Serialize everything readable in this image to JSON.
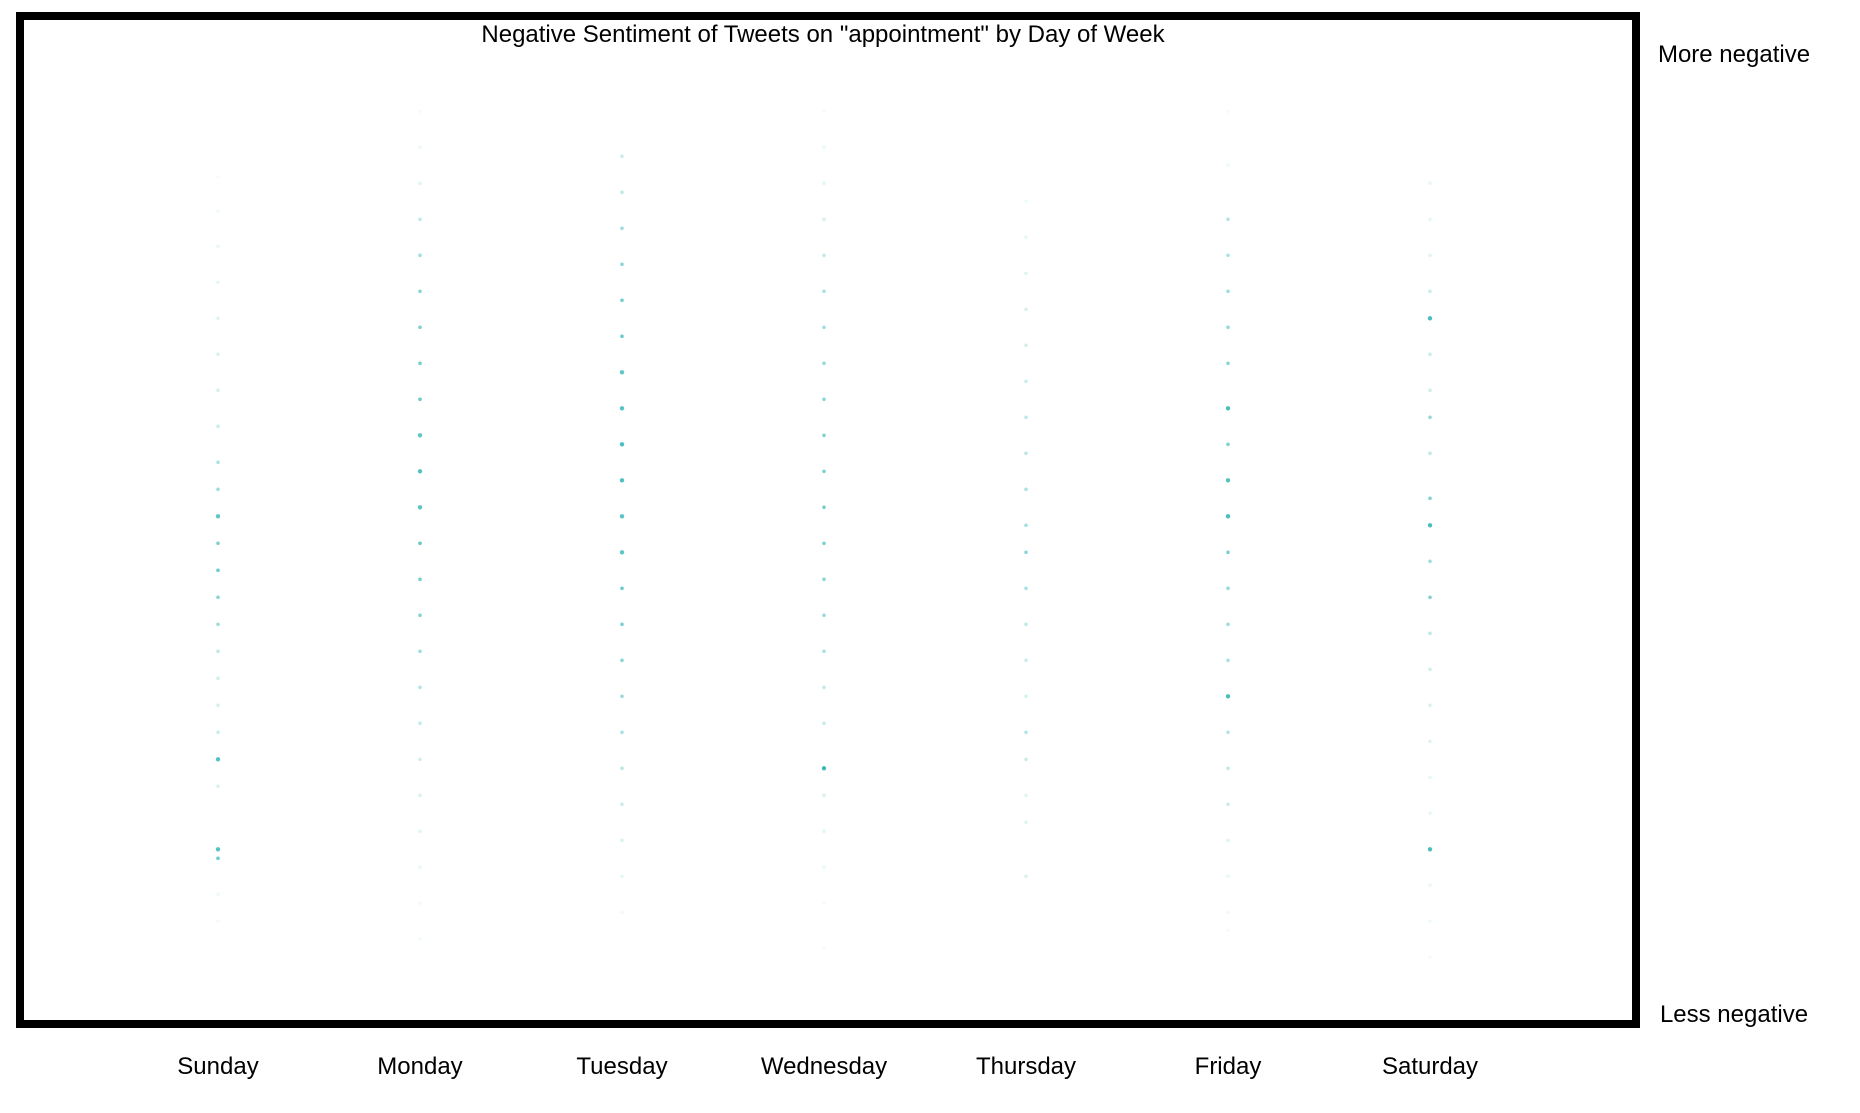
{
  "chart_data": {
    "type": "scatter",
    "title": "Negative Sentiment of Tweets on \"appointment\" by Day of Week",
    "categories": [
      "Sunday",
      "Monday",
      "Tuesday",
      "Wednesday",
      "Thursday",
      "Friday",
      "Saturday"
    ],
    "y_axis_label_top": "More negative",
    "y_axis_label_bottom": "Less negative",
    "ylim": [
      0,
      1
    ],
    "grid": false,
    "legend": "none",
    "point_color": "#2ab3b3",
    "frame_color": "#000000",
    "series": [
      {
        "category": "Sunday",
        "points": [
          {
            "y": 0.87,
            "opacity": 0.05
          },
          {
            "y": 0.832,
            "opacity": 0.07
          },
          {
            "y": 0.793,
            "opacity": 0.09
          },
          {
            "y": 0.753,
            "opacity": 0.12
          },
          {
            "y": 0.713,
            "opacity": 0.15
          },
          {
            "y": 0.673,
            "opacity": 0.18
          },
          {
            "y": 0.633,
            "opacity": 0.2
          },
          {
            "y": 0.593,
            "opacity": 0.25
          },
          {
            "y": 0.553,
            "opacity": 0.4
          },
          {
            "y": 0.523,
            "opacity": 0.45
          },
          {
            "y": 0.493,
            "opacity": 0.75
          },
          {
            "y": 0.463,
            "opacity": 0.6
          },
          {
            "y": 0.433,
            "opacity": 0.7
          },
          {
            "y": 0.403,
            "opacity": 0.55
          },
          {
            "y": 0.373,
            "opacity": 0.45
          },
          {
            "y": 0.343,
            "opacity": 0.3
          },
          {
            "y": 0.313,
            "opacity": 0.22
          },
          {
            "y": 0.283,
            "opacity": 0.2
          },
          {
            "y": 0.253,
            "opacity": 0.25
          },
          {
            "y": 0.223,
            "opacity": 0.8
          },
          {
            "y": 0.193,
            "opacity": 0.18
          },
          {
            "y": 0.123,
            "opacity": 0.8
          },
          {
            "y": 0.113,
            "opacity": 0.7
          },
          {
            "y": 0.073,
            "opacity": 0.08
          },
          {
            "y": 0.043,
            "opacity": 0.05
          }
        ]
      },
      {
        "category": "Monday",
        "points": [
          {
            "y": 0.943,
            "opacity": 0.05
          },
          {
            "y": 0.903,
            "opacity": 0.08
          },
          {
            "y": 0.863,
            "opacity": 0.15
          },
          {
            "y": 0.823,
            "opacity": 0.3
          },
          {
            "y": 0.783,
            "opacity": 0.45
          },
          {
            "y": 0.743,
            "opacity": 0.55
          },
          {
            "y": 0.703,
            "opacity": 0.6
          },
          {
            "y": 0.663,
            "opacity": 0.65
          },
          {
            "y": 0.623,
            "opacity": 0.7
          },
          {
            "y": 0.583,
            "opacity": 0.75
          },
          {
            "y": 0.543,
            "opacity": 0.8
          },
          {
            "y": 0.503,
            "opacity": 0.78
          },
          {
            "y": 0.463,
            "opacity": 0.72
          },
          {
            "y": 0.423,
            "opacity": 0.65
          },
          {
            "y": 0.383,
            "opacity": 0.58
          },
          {
            "y": 0.343,
            "opacity": 0.45
          },
          {
            "y": 0.303,
            "opacity": 0.35
          },
          {
            "y": 0.263,
            "opacity": 0.28
          },
          {
            "y": 0.223,
            "opacity": 0.22
          },
          {
            "y": 0.183,
            "opacity": 0.18
          },
          {
            "y": 0.143,
            "opacity": 0.14
          },
          {
            "y": 0.103,
            "opacity": 0.1
          },
          {
            "y": 0.063,
            "opacity": 0.06
          },
          {
            "y": 0.023,
            "opacity": 0.06
          }
        ]
      },
      {
        "category": "Tuesday",
        "points": [
          {
            "y": 0.893,
            "opacity": 0.25
          },
          {
            "y": 0.853,
            "opacity": 0.3
          },
          {
            "y": 0.813,
            "opacity": 0.45
          },
          {
            "y": 0.773,
            "opacity": 0.55
          },
          {
            "y": 0.733,
            "opacity": 0.65
          },
          {
            "y": 0.693,
            "opacity": 0.7
          },
          {
            "y": 0.653,
            "opacity": 0.75
          },
          {
            "y": 0.613,
            "opacity": 0.8
          },
          {
            "y": 0.573,
            "opacity": 0.85
          },
          {
            "y": 0.533,
            "opacity": 0.82
          },
          {
            "y": 0.493,
            "opacity": 0.78
          },
          {
            "y": 0.453,
            "opacity": 0.75
          },
          {
            "y": 0.413,
            "opacity": 0.7
          },
          {
            "y": 0.373,
            "opacity": 0.62
          },
          {
            "y": 0.333,
            "opacity": 0.55
          },
          {
            "y": 0.293,
            "opacity": 0.48
          },
          {
            "y": 0.253,
            "opacity": 0.4
          },
          {
            "y": 0.213,
            "opacity": 0.33
          },
          {
            "y": 0.173,
            "opacity": 0.25
          },
          {
            "y": 0.133,
            "opacity": 0.18
          },
          {
            "y": 0.093,
            "opacity": 0.12
          },
          {
            "y": 0.053,
            "opacity": 0.07
          }
        ]
      },
      {
        "category": "Wednesday",
        "points": [
          {
            "y": 0.943,
            "opacity": 0.05
          },
          {
            "y": 0.903,
            "opacity": 0.08
          },
          {
            "y": 0.863,
            "opacity": 0.12
          },
          {
            "y": 0.823,
            "opacity": 0.2
          },
          {
            "y": 0.783,
            "opacity": 0.3
          },
          {
            "y": 0.743,
            "opacity": 0.4
          },
          {
            "y": 0.703,
            "opacity": 0.45
          },
          {
            "y": 0.663,
            "opacity": 0.5
          },
          {
            "y": 0.623,
            "opacity": 0.55
          },
          {
            "y": 0.583,
            "opacity": 0.6
          },
          {
            "y": 0.543,
            "opacity": 0.62
          },
          {
            "y": 0.503,
            "opacity": 0.65
          },
          {
            "y": 0.463,
            "opacity": 0.62
          },
          {
            "y": 0.423,
            "opacity": 0.55
          },
          {
            "y": 0.383,
            "opacity": 0.48
          },
          {
            "y": 0.343,
            "opacity": 0.4
          },
          {
            "y": 0.303,
            "opacity": 0.3
          },
          {
            "y": 0.263,
            "opacity": 0.25
          },
          {
            "y": 0.213,
            "opacity": 0.9
          },
          {
            "y": 0.183,
            "opacity": 0.18
          },
          {
            "y": 0.143,
            "opacity": 0.12
          },
          {
            "y": 0.103,
            "opacity": 0.08
          },
          {
            "y": 0.063,
            "opacity": 0.06
          },
          {
            "y": 0.013,
            "opacity": 0.05
          }
        ]
      },
      {
        "category": "Thursday",
        "points": [
          {
            "y": 0.843,
            "opacity": 0.08
          },
          {
            "y": 0.803,
            "opacity": 0.12
          },
          {
            "y": 0.763,
            "opacity": 0.15
          },
          {
            "y": 0.723,
            "opacity": 0.18
          },
          {
            "y": 0.683,
            "opacity": 0.22
          },
          {
            "y": 0.643,
            "opacity": 0.25
          },
          {
            "y": 0.603,
            "opacity": 0.3
          },
          {
            "y": 0.563,
            "opacity": 0.33
          },
          {
            "y": 0.523,
            "opacity": 0.38
          },
          {
            "y": 0.483,
            "opacity": 0.42
          },
          {
            "y": 0.453,
            "opacity": 0.55
          },
          {
            "y": 0.413,
            "opacity": 0.4
          },
          {
            "y": 0.373,
            "opacity": 0.3
          },
          {
            "y": 0.333,
            "opacity": 0.25
          },
          {
            "y": 0.293,
            "opacity": 0.2
          },
          {
            "y": 0.253,
            "opacity": 0.35
          },
          {
            "y": 0.223,
            "opacity": 0.25
          },
          {
            "y": 0.183,
            "opacity": 0.15
          },
          {
            "y": 0.153,
            "opacity": 0.15
          },
          {
            "y": 0.093,
            "opacity": 0.18
          }
        ]
      },
      {
        "category": "Friday",
        "points": [
          {
            "y": 0.943,
            "opacity": 0.05
          },
          {
            "y": 0.883,
            "opacity": 0.08
          },
          {
            "y": 0.823,
            "opacity": 0.35
          },
          {
            "y": 0.783,
            "opacity": 0.4
          },
          {
            "y": 0.743,
            "opacity": 0.45
          },
          {
            "y": 0.703,
            "opacity": 0.5
          },
          {
            "y": 0.663,
            "opacity": 0.55
          },
          {
            "y": 0.613,
            "opacity": 0.85
          },
          {
            "y": 0.573,
            "opacity": 0.6
          },
          {
            "y": 0.533,
            "opacity": 0.8
          },
          {
            "y": 0.493,
            "opacity": 0.85
          },
          {
            "y": 0.453,
            "opacity": 0.62
          },
          {
            "y": 0.413,
            "opacity": 0.5
          },
          {
            "y": 0.373,
            "opacity": 0.45
          },
          {
            "y": 0.333,
            "opacity": 0.4
          },
          {
            "y": 0.293,
            "opacity": 0.85
          },
          {
            "y": 0.253,
            "opacity": 0.35
          },
          {
            "y": 0.213,
            "opacity": 0.3
          },
          {
            "y": 0.173,
            "opacity": 0.25
          },
          {
            "y": 0.133,
            "opacity": 0.15
          },
          {
            "y": 0.093,
            "opacity": 0.1
          },
          {
            "y": 0.053,
            "opacity": 0.07
          },
          {
            "y": 0.033,
            "opacity": 0.05
          }
        ]
      },
      {
        "category": "Saturday",
        "points": [
          {
            "y": 0.863,
            "opacity": 0.1
          },
          {
            "y": 0.823,
            "opacity": 0.12
          },
          {
            "y": 0.783,
            "opacity": 0.15
          },
          {
            "y": 0.743,
            "opacity": 0.25
          },
          {
            "y": 0.713,
            "opacity": 0.85
          },
          {
            "y": 0.673,
            "opacity": 0.25
          },
          {
            "y": 0.633,
            "opacity": 0.22
          },
          {
            "y": 0.603,
            "opacity": 0.5
          },
          {
            "y": 0.563,
            "opacity": 0.3
          },
          {
            "y": 0.513,
            "opacity": 0.6
          },
          {
            "y": 0.483,
            "opacity": 0.85
          },
          {
            "y": 0.443,
            "opacity": 0.45
          },
          {
            "y": 0.403,
            "opacity": 0.6
          },
          {
            "y": 0.363,
            "opacity": 0.3
          },
          {
            "y": 0.323,
            "opacity": 0.22
          },
          {
            "y": 0.283,
            "opacity": 0.18
          },
          {
            "y": 0.243,
            "opacity": 0.15
          },
          {
            "y": 0.203,
            "opacity": 0.12
          },
          {
            "y": 0.163,
            "opacity": 0.12
          },
          {
            "y": 0.123,
            "opacity": 0.85
          },
          {
            "y": 0.083,
            "opacity": 0.1
          },
          {
            "y": 0.043,
            "opacity": 0.08
          },
          {
            "y": 0.003,
            "opacity": 0.05
          }
        ]
      }
    ]
  }
}
